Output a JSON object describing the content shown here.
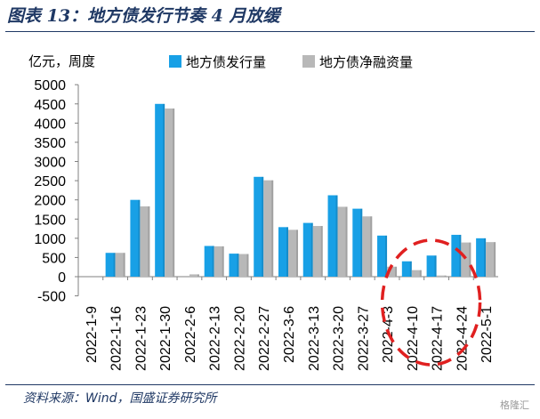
{
  "title": "图表 13：地方债发行节奏 4 月放缓",
  "source": "资料来源：Wind，国盛证券研究所",
  "watermark": "格隆汇",
  "chart_data": {
    "type": "bar",
    "unit_label": "亿元，周度",
    "ylim": [
      -500,
      5000
    ],
    "yticks": [
      "-500",
      "0",
      "500",
      "1000",
      "1500",
      "2000",
      "2500",
      "3000",
      "3500",
      "4000",
      "4500",
      "5000"
    ],
    "ytick_values": [
      -500,
      0,
      500,
      1000,
      1500,
      2000,
      2500,
      3000,
      3500,
      4000,
      4500,
      5000
    ],
    "categories": [
      "2022-1-9",
      "2022-1-16",
      "2022-1-23",
      "2022-1-30",
      "2022-2-6",
      "2022-2-13",
      "2022-2-20",
      "2022-2-27",
      "2022-3-6",
      "2022-3-13",
      "2022-3-20",
      "2022-3-27",
      "2022-4-3",
      "2022-4-10",
      "2022-4-17",
      "2022-4-24",
      "2022-5-1"
    ],
    "series": [
      {
        "name": "地方债发行量",
        "color": "#18a0e6",
        "values": [
          0,
          620,
          2000,
          4500,
          0,
          800,
          600,
          2600,
          1290,
          1400,
          2120,
          1770,
          1070,
          400,
          550,
          1090,
          1000
        ]
      },
      {
        "name": "地方债净融资量",
        "color": "#b8b8b8",
        "values": [
          0,
          620,
          1830,
          4380,
          60,
          790,
          590,
          2510,
          1220,
          1320,
          1820,
          1570,
          260,
          170,
          30,
          890,
          900
        ]
      }
    ],
    "legend_position": "top",
    "annotation": {
      "shape": "dashed-ellipse",
      "color": "#e02020",
      "highlights": [
        "2022-4-3",
        "2022-4-10",
        "2022-4-17",
        "2022-4-24",
        "2022-5-1"
      ]
    }
  }
}
